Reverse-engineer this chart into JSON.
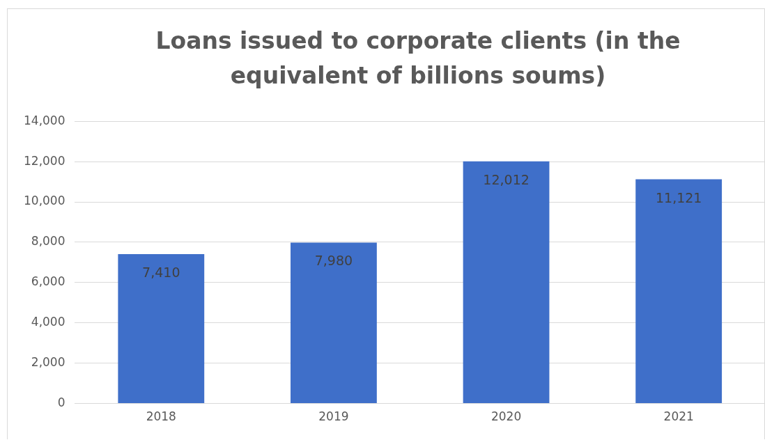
{
  "chart_data": {
    "type": "bar",
    "title": "Loans issued to corporate clients (in the equivalent of billions soums)",
    "categories": [
      "2018",
      "2019",
      "2020",
      "2021"
    ],
    "values": [
      7410,
      7980,
      12012,
      11121
    ],
    "value_labels": [
      "7,410",
      "7,980",
      "12,012",
      "11,121"
    ],
    "color": "#3f6fc9",
    "ylim": [
      0,
      14000
    ],
    "yticks": [
      0,
      {
        "value": 2000,
        "label": "2,000"
      },
      {
        "value": 4000,
        "label": "4,000"
      },
      {
        "value": 6000,
        "label": "6,000"
      },
      {
        "value": 8000,
        "label": "8,000"
      },
      {
        "value": 10000,
        "label": "10,000"
      },
      {
        "value": 12000,
        "label": "12,000"
      },
      {
        "value": 14000,
        "label": "14,000"
      }
    ],
    "grid": "y"
  }
}
